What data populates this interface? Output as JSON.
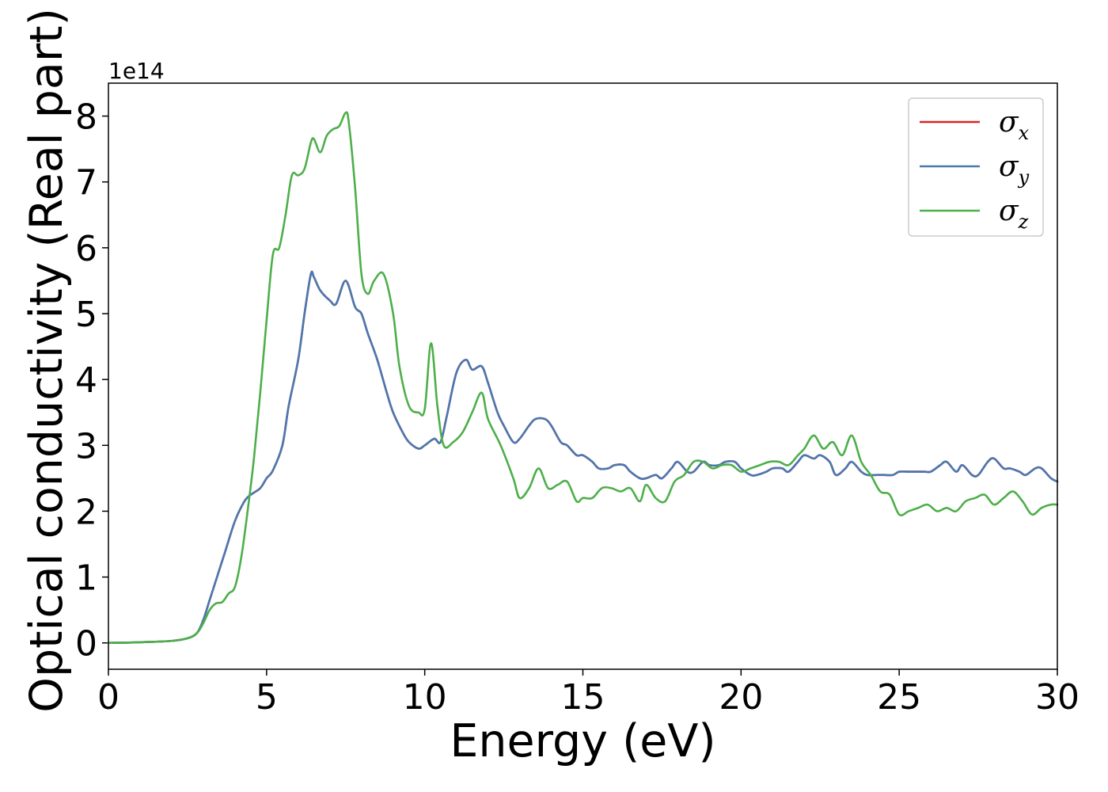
{
  "chart_data": {
    "type": "line",
    "xlabel": "Energy (eV)",
    "ylabel": "Optical conductivity (Real part)",
    "y_offset_text": "1e14",
    "xlim": [
      0,
      30
    ],
    "ylim": [
      -0.4,
      8.5
    ],
    "x_ticks": [
      0,
      5,
      10,
      15,
      20,
      25,
      30
    ],
    "y_ticks": [
      0,
      1,
      2,
      3,
      4,
      5,
      6,
      7,
      8
    ],
    "legend_position": "upper-right",
    "grid": false,
    "series": [
      {
        "name": "σx",
        "name_base": "σ",
        "name_sub": "x",
        "color": "#d62728",
        "x": [
          0,
          1,
          2,
          2.5,
          2.8,
          3.0,
          3.2,
          3.5,
          3.7,
          4.0,
          4.3,
          4.5,
          4.8,
          5.0,
          5.2,
          5.5,
          5.7,
          6.0,
          6.2,
          6.4,
          6.5,
          6.7,
          7.0,
          7.2,
          7.5,
          7.8,
          8.0,
          8.2,
          8.5,
          8.8,
          9.0,
          9.3,
          9.5,
          9.8,
          10.0,
          10.3,
          10.5,
          10.7,
          11.0,
          11.3,
          11.5,
          11.8,
          12.0,
          12.3,
          12.5,
          12.8,
          13.0,
          13.3,
          13.5,
          13.8,
          14.0,
          14.3,
          14.5,
          14.8,
          15.0,
          15.3,
          15.5,
          15.8,
          16.0,
          16.3,
          16.5,
          16.8,
          17.0,
          17.3,
          17.5,
          17.8,
          18.0,
          18.3,
          18.5,
          18.8,
          19.0,
          19.3,
          19.5,
          19.8,
          20.0,
          20.3,
          20.5,
          20.8,
          21.0,
          21.3,
          21.5,
          21.8,
          22.0,
          22.3,
          22.5,
          22.8,
          23.0,
          23.3,
          23.5,
          23.8,
          24.0,
          24.3,
          24.5,
          24.8,
          25.0,
          25.3,
          25.5,
          25.8,
          26.0,
          26.3,
          26.5,
          26.8,
          27.0,
          27.3,
          27.5,
          27.8,
          28.0,
          28.3,
          28.5,
          28.8,
          29.0,
          29.3,
          29.5,
          29.8,
          30.0
        ],
        "y": [
          0,
          0.01,
          0.03,
          0.07,
          0.15,
          0.35,
          0.65,
          1.1,
          1.4,
          1.85,
          2.15,
          2.25,
          2.35,
          2.5,
          2.62,
          3.0,
          3.6,
          4.3,
          5.0,
          5.6,
          5.55,
          5.35,
          5.2,
          5.15,
          5.5,
          5.1,
          5.0,
          4.7,
          4.3,
          3.8,
          3.5,
          3.2,
          3.05,
          2.95,
          3.0,
          3.1,
          3.05,
          3.45,
          4.1,
          4.3,
          4.15,
          4.2,
          3.95,
          3.5,
          3.3,
          3.05,
          3.1,
          3.3,
          3.4,
          3.4,
          3.3,
          3.05,
          3.0,
          2.85,
          2.85,
          2.75,
          2.65,
          2.65,
          2.7,
          2.7,
          2.6,
          2.5,
          2.5,
          2.55,
          2.5,
          2.65,
          2.75,
          2.6,
          2.6,
          2.75,
          2.7,
          2.7,
          2.75,
          2.75,
          2.65,
          2.55,
          2.55,
          2.6,
          2.65,
          2.65,
          2.6,
          2.75,
          2.85,
          2.8,
          2.85,
          2.75,
          2.55,
          2.65,
          2.75,
          2.6,
          2.55,
          2.55,
          2.55,
          2.55,
          2.6,
          2.6,
          2.6,
          2.6,
          2.6,
          2.7,
          2.75,
          2.6,
          2.7,
          2.55,
          2.55,
          2.75,
          2.8,
          2.65,
          2.65,
          2.6,
          2.55,
          2.65,
          2.65,
          2.5,
          2.45
        ]
      },
      {
        "name": "σy",
        "name_base": "σ",
        "name_sub": "y",
        "color": "#4a78b0",
        "x": [
          0,
          1,
          2,
          2.5,
          2.8,
          3.0,
          3.2,
          3.5,
          3.7,
          4.0,
          4.3,
          4.5,
          4.8,
          5.0,
          5.2,
          5.5,
          5.7,
          6.0,
          6.2,
          6.4,
          6.5,
          6.7,
          7.0,
          7.2,
          7.5,
          7.8,
          8.0,
          8.2,
          8.5,
          8.8,
          9.0,
          9.3,
          9.5,
          9.8,
          10.0,
          10.3,
          10.5,
          10.7,
          11.0,
          11.3,
          11.5,
          11.8,
          12.0,
          12.3,
          12.5,
          12.8,
          13.0,
          13.3,
          13.5,
          13.8,
          14.0,
          14.3,
          14.5,
          14.8,
          15.0,
          15.3,
          15.5,
          15.8,
          16.0,
          16.3,
          16.5,
          16.8,
          17.0,
          17.3,
          17.5,
          17.8,
          18.0,
          18.3,
          18.5,
          18.8,
          19.0,
          19.3,
          19.5,
          19.8,
          20.0,
          20.3,
          20.5,
          20.8,
          21.0,
          21.3,
          21.5,
          21.8,
          22.0,
          22.3,
          22.5,
          22.8,
          23.0,
          23.3,
          23.5,
          23.8,
          24.0,
          24.3,
          24.5,
          24.8,
          25.0,
          25.3,
          25.5,
          25.8,
          26.0,
          26.3,
          26.5,
          26.8,
          27.0,
          27.3,
          27.5,
          27.8,
          28.0,
          28.3,
          28.5,
          28.8,
          29.0,
          29.3,
          29.5,
          29.8,
          30.0
        ],
        "y": [
          0,
          0.01,
          0.03,
          0.07,
          0.15,
          0.35,
          0.65,
          1.1,
          1.4,
          1.85,
          2.15,
          2.25,
          2.35,
          2.5,
          2.62,
          3.0,
          3.6,
          4.3,
          5.0,
          5.6,
          5.55,
          5.35,
          5.2,
          5.15,
          5.5,
          5.1,
          5.0,
          4.7,
          4.3,
          3.8,
          3.5,
          3.2,
          3.05,
          2.95,
          3.0,
          3.1,
          3.05,
          3.45,
          4.1,
          4.3,
          4.15,
          4.2,
          3.95,
          3.5,
          3.3,
          3.05,
          3.1,
          3.3,
          3.4,
          3.4,
          3.3,
          3.05,
          3.0,
          2.85,
          2.85,
          2.75,
          2.65,
          2.65,
          2.7,
          2.7,
          2.6,
          2.5,
          2.5,
          2.55,
          2.5,
          2.65,
          2.75,
          2.6,
          2.6,
          2.75,
          2.7,
          2.7,
          2.75,
          2.75,
          2.65,
          2.55,
          2.55,
          2.6,
          2.65,
          2.65,
          2.6,
          2.75,
          2.85,
          2.8,
          2.85,
          2.75,
          2.55,
          2.65,
          2.75,
          2.6,
          2.55,
          2.55,
          2.55,
          2.55,
          2.6,
          2.6,
          2.6,
          2.6,
          2.6,
          2.7,
          2.75,
          2.6,
          2.7,
          2.55,
          2.55,
          2.75,
          2.8,
          2.65,
          2.65,
          2.6,
          2.55,
          2.65,
          2.65,
          2.5,
          2.45
        ]
      },
      {
        "name": "σz",
        "name_base": "σ",
        "name_sub": "z",
        "color": "#4daf4a",
        "x": [
          0,
          1,
          2,
          2.5,
          2.8,
          3.0,
          3.2,
          3.4,
          3.6,
          3.8,
          4.0,
          4.2,
          4.4,
          4.6,
          4.8,
          5.0,
          5.2,
          5.4,
          5.6,
          5.8,
          6.0,
          6.2,
          6.4,
          6.5,
          6.7,
          6.9,
          7.1,
          7.3,
          7.5,
          7.6,
          7.8,
          8.0,
          8.2,
          8.4,
          8.7,
          9.0,
          9.2,
          9.5,
          9.8,
          10.0,
          10.2,
          10.4,
          10.6,
          10.9,
          11.2,
          11.5,
          11.8,
          12.0,
          12.4,
          12.8,
          13.0,
          13.3,
          13.6,
          13.9,
          14.2,
          14.5,
          14.8,
          15.0,
          15.3,
          15.6,
          15.9,
          16.2,
          16.5,
          16.8,
          17.0,
          17.3,
          17.6,
          17.9,
          18.2,
          18.5,
          18.8,
          19.1,
          19.4,
          19.7,
          20.0,
          20.3,
          20.6,
          20.9,
          21.2,
          21.5,
          21.8,
          22.0,
          22.3,
          22.6,
          22.9,
          23.2,
          23.5,
          23.8,
          24.1,
          24.4,
          24.7,
          25.0,
          25.3,
          25.6,
          25.9,
          26.2,
          26.5,
          26.8,
          27.1,
          27.4,
          27.7,
          28.0,
          28.3,
          28.6,
          28.9,
          29.2,
          29.5,
          29.8,
          30.0
        ],
        "y": [
          0,
          0.01,
          0.03,
          0.07,
          0.15,
          0.3,
          0.5,
          0.6,
          0.62,
          0.75,
          0.85,
          1.3,
          2.0,
          2.8,
          3.8,
          4.9,
          5.9,
          6.0,
          6.5,
          7.1,
          7.1,
          7.2,
          7.6,
          7.65,
          7.45,
          7.7,
          7.8,
          7.85,
          8.05,
          7.9,
          6.9,
          5.6,
          5.3,
          5.5,
          5.6,
          5.0,
          4.2,
          3.6,
          3.5,
          3.55,
          4.55,
          3.6,
          3.0,
          3.05,
          3.2,
          3.5,
          3.8,
          3.4,
          3.0,
          2.5,
          2.2,
          2.35,
          2.65,
          2.35,
          2.4,
          2.45,
          2.15,
          2.2,
          2.2,
          2.35,
          2.35,
          2.3,
          2.35,
          2.15,
          2.4,
          2.2,
          2.15,
          2.45,
          2.55,
          2.75,
          2.75,
          2.65,
          2.7,
          2.7,
          2.6,
          2.65,
          2.7,
          2.75,
          2.75,
          2.7,
          2.85,
          2.95,
          3.15,
          2.95,
          3.05,
          2.85,
          3.15,
          2.75,
          2.55,
          2.3,
          2.25,
          1.95,
          2.0,
          2.05,
          2.1,
          2.0,
          2.05,
          2.0,
          2.15,
          2.2,
          2.25,
          2.1,
          2.2,
          2.3,
          2.15,
          1.95,
          2.05,
          2.1,
          2.1
        ]
      }
    ]
  }
}
